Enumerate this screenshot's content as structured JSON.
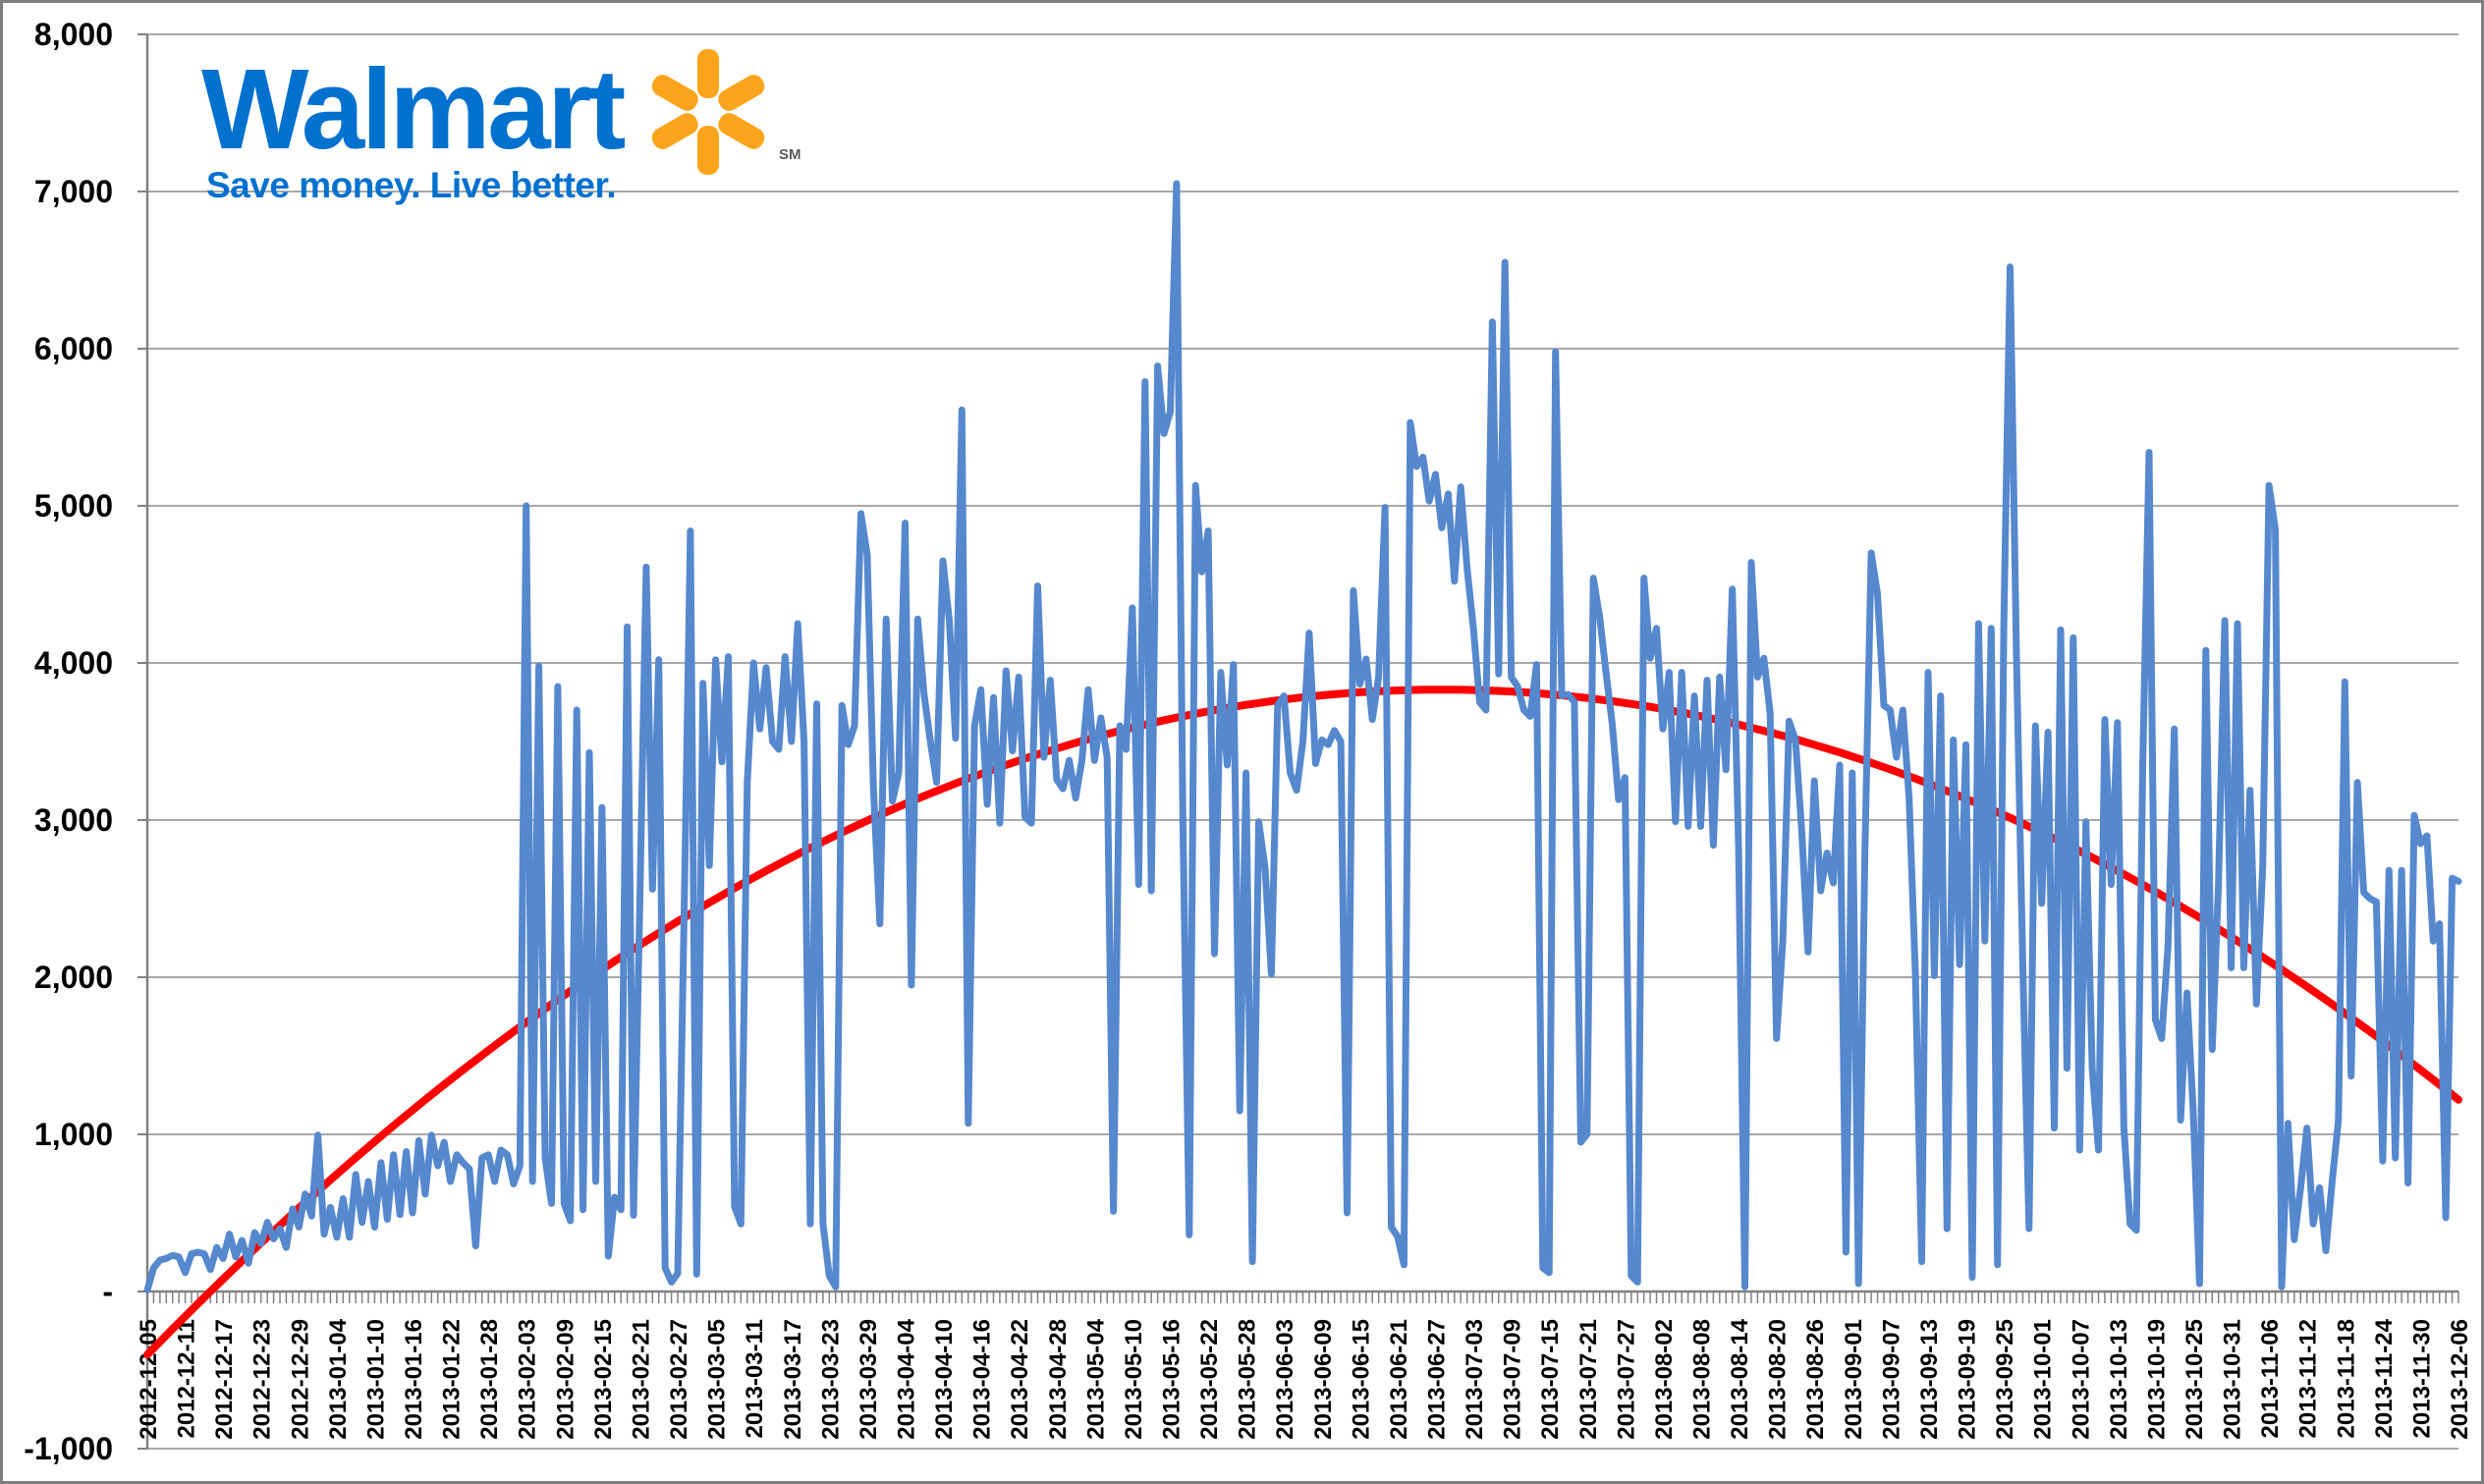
{
  "logo": {
    "wordmark": "Walmart",
    "tagline": "Save money. Live better.",
    "trademark": "SM",
    "wordmark_color": "#0071CE",
    "tagline_color": "#0071CE",
    "trademark_color": "#58595B",
    "spark_color": "#FBA51C"
  },
  "chart_data": {
    "type": "line",
    "title": "",
    "grid": true,
    "legend": "none",
    "x_axis": {
      "start": "2012-12-05",
      "end": "2013-12-06",
      "total_days": 366,
      "tick_interval_days": 6,
      "tick_labels": [
        "2012-12-05",
        "2012-12-11",
        "2012-12-17",
        "2012-12-23",
        "2012-12-29",
        "2013-01-04",
        "2013-01-10",
        "2013-01-16",
        "2013-01-22",
        "2013-01-28",
        "2013-02-03",
        "2013-02-09",
        "2013-02-15",
        "2013-02-21",
        "2013-02-27",
        "2013-03-05",
        "2013-03-11",
        "2013-03-17",
        "2013-03-23",
        "2013-03-29",
        "2013-04-04",
        "2013-04-10",
        "2013-04-16",
        "2013-04-22",
        "2013-04-28",
        "2013-05-04",
        "2013-05-10",
        "2013-05-16",
        "2013-05-22",
        "2013-05-28",
        "2013-06-03",
        "2013-06-09",
        "2013-06-15",
        "2013-06-21",
        "2013-06-27",
        "2013-07-03",
        "2013-07-09",
        "2013-07-15",
        "2013-07-21",
        "2013-07-27",
        "2013-08-02",
        "2013-08-08",
        "2013-08-14",
        "2013-08-20",
        "2013-08-26",
        "2013-09-01",
        "2013-09-07",
        "2013-09-13",
        "2013-09-19",
        "2013-09-25",
        "2013-10-01",
        "2013-10-07",
        "2013-10-13",
        "2013-10-19",
        "2013-10-25",
        "2013-10-31",
        "2013-11-06",
        "2013-11-12",
        "2013-11-18",
        "2013-11-24",
        "2013-11-30",
        "2013-12-06"
      ]
    },
    "y_axis": {
      "min": -1000,
      "max": 8000,
      "step": 1000,
      "tick_labels": [
        "8,000",
        "7,000",
        "6,000",
        "5,000",
        "4,000",
        "3,000",
        "2,000",
        "1,000",
        "-",
        "-1,000"
      ]
    },
    "series": [
      {
        "name": "daily-values",
        "type": "line",
        "color": "#5688CE",
        "stroke_width": 7,
        "start_date": "2012-12-05",
        "frequency": "daily",
        "values": [
          10,
          150,
          200,
          210,
          230,
          220,
          120,
          240,
          250,
          240,
          140,
          280,
          210,
          365,
          220,
          325,
          180,
          375,
          305,
          440,
          335,
          400,
          280,
          525,
          410,
          620,
          480,
          995,
          365,
          535,
          345,
          590,
          345,
          745,
          440,
          700,
          410,
          820,
          460,
          870,
          490,
          890,
          500,
          960,
          620,
          995,
          800,
          950,
          700,
          870,
          820,
          780,
          290,
          850,
          870,
          700,
          900,
          870,
          685,
          800,
          5000,
          700,
          3980,
          850,
          560,
          3850,
          560,
          450,
          3700,
          520,
          3430,
          700,
          3080,
          225,
          600,
          520,
          4230,
          485,
          2500,
          4610,
          2560,
          4020,
          150,
          60,
          115,
          2400,
          4840,
          110,
          3870,
          2710,
          4020,
          3370,
          4040,
          540,
          430,
          3240,
          4000,
          3580,
          3970,
          3500,
          3450,
          4040,
          3500,
          4250,
          3500,
          430,
          3740,
          430,
          100,
          30,
          3730,
          3480,
          3600,
          4950,
          4690,
          3200,
          2340,
          4280,
          3120,
          3300,
          4890,
          1950,
          4280,
          3800,
          3500,
          3240,
          4650,
          4270,
          3520,
          5610,
          1070,
          3600,
          3830,
          3100,
          3780,
          2980,
          3950,
          3440,
          3910,
          3020,
          2980,
          4490,
          3400,
          3890,
          3260,
          3200,
          3380,
          3140,
          3380,
          3830,
          3380,
          3650,
          3400,
          510,
          3600,
          3450,
          4350,
          2590,
          5790,
          2550,
          5890,
          5460,
          5600,
          7050,
          3000,
          360,
          5130,
          4580,
          4840,
          2150,
          3940,
          3350,
          3990,
          1150,
          3300,
          190,
          2990,
          2700,
          2020,
          3730,
          3790,
          3300,
          3190,
          3500,
          4190,
          3360,
          3510,
          3480,
          3570,
          3500,
          500,
          4460,
          3865,
          4025,
          3640,
          3910,
          4990,
          410,
          350,
          170,
          5530,
          5250,
          5310,
          5030,
          5200,
          4860,
          5075,
          4520,
          5120,
          4600,
          4220,
          3750,
          3700,
          6170,
          3930,
          6550,
          3910,
          3850,
          3700,
          3660,
          3990,
          150,
          120,
          5980,
          3790,
          3800,
          3750,
          950,
          1000,
          4540,
          4290,
          3940,
          3610,
          3130,
          3270,
          100,
          60,
          4540,
          4030,
          4220,
          3580,
          3940,
          2990,
          3940,
          2960,
          3790,
          2960,
          3890,
          2840,
          3910,
          3320,
          4470,
          2820,
          30,
          4640,
          3910,
          4030,
          3680,
          1610,
          2230,
          3630,
          3510,
          2930,
          2160,
          3250,
          2550,
          2790,
          2600,
          3350,
          250,
          3300,
          50,
          2800,
          4700,
          4440,
          3730,
          3700,
          3400,
          3700,
          3140,
          2020,
          190,
          3940,
          2010,
          3790,
          400,
          3510,
          2080,
          3480,
          90,
          4250,
          2230,
          4220,
          170,
          4230,
          6520,
          4040,
          2090,
          400,
          3600,
          2470,
          3560,
          1040,
          4210,
          1420,
          4160,
          900,
          2990,
          1420,
          900,
          3640,
          2590,
          3620,
          1050,
          430,
          390,
          3360,
          5340,
          1730,
          1610,
          2200,
          3580,
          1090,
          1900,
          1140,
          50,
          4080,
          1540,
          2600,
          4270,
          2060,
          4250,
          2060,
          3190,
          1830,
          2700,
          5130,
          4850,
          30,
          1070,
          330,
          660,
          1040,
          430,
          660,
          260,
          700,
          1090,
          3880,
          1370,
          3240,
          2540,
          2500,
          2480,
          830,
          2680,
          850,
          2680,
          690,
          3030,
          2850,
          2900,
          2230,
          2340,
          470,
          2630,
          2610
        ]
      },
      {
        "name": "polynomial-trend",
        "type": "trend",
        "color": "#FF0000",
        "stroke_width": 8,
        "fit": {
          "form": "quadratic",
          "peak_day": 205,
          "peak_value": 3830,
          "a": -0.1007
        }
      }
    ]
  },
  "colors": {
    "background": "#FFFFFF",
    "gridline": "#A8A8A8",
    "axis": "#808080",
    "tick": "#808080",
    "label_text": "#000000",
    "frame": "#7E7E7E"
  }
}
